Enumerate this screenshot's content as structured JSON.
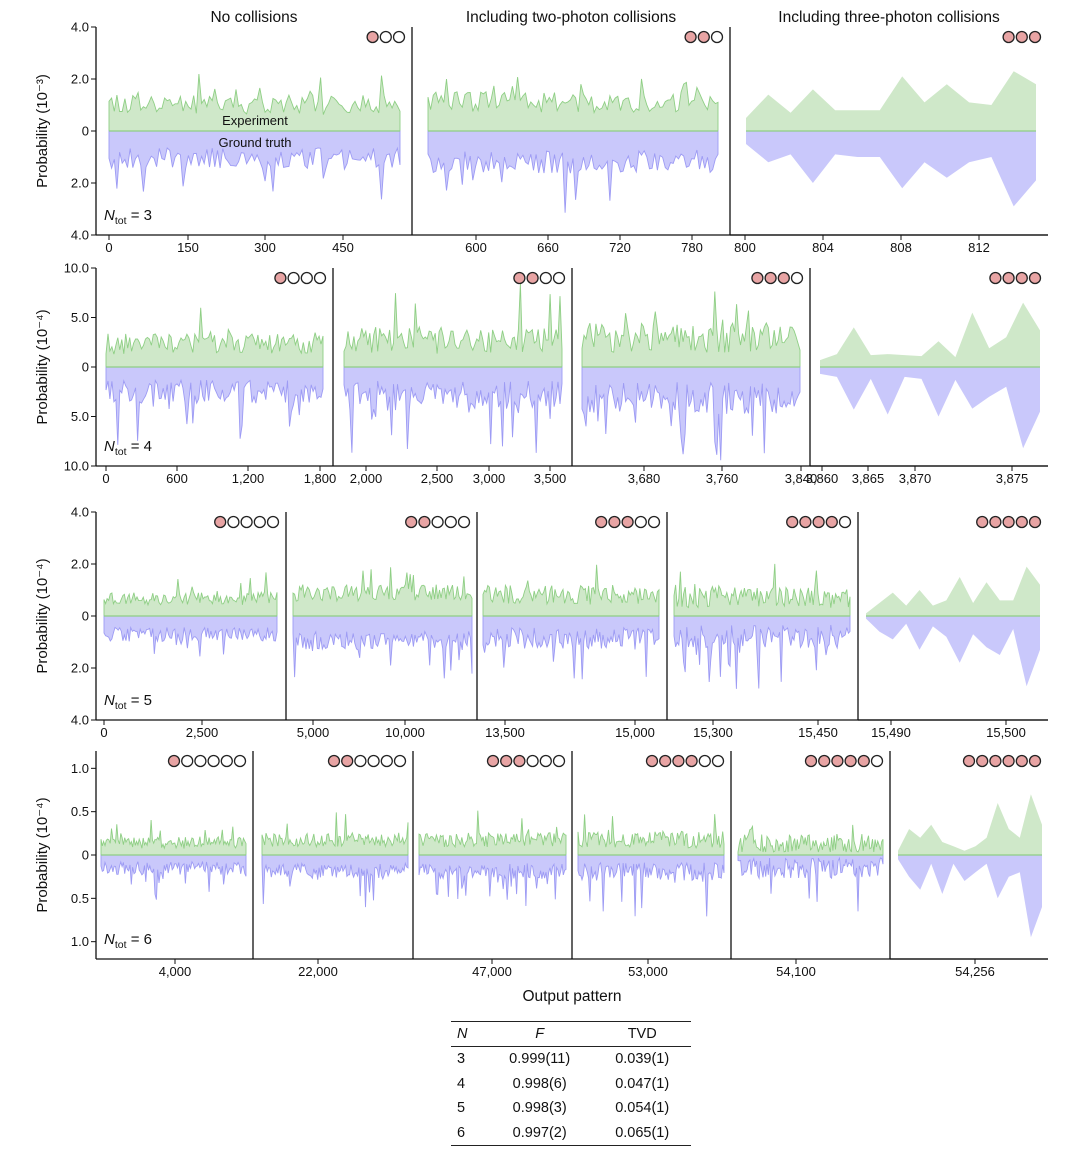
{
  "colors": {
    "experiment": "#8fcf85",
    "experiment_fill": "#cfe8c9",
    "truth": "#9d9bf4",
    "truth_fill": "#c9c8fb",
    "axis": "#111111",
    "photon_filled": "#e8a4a4",
    "photon_empty": "#ffffff"
  },
  "x_axis_label": "Output pattern",
  "table": {
    "headers": [
      "N",
      "F",
      "TVD"
    ],
    "rows": [
      [
        "3",
        "0.999(11)",
        "0.039(1)"
      ],
      [
        "4",
        "0.998(6)",
        "0.047(1)"
      ],
      [
        "5",
        "0.998(3)",
        "0.054(1)"
      ],
      [
        "6",
        "0.997(2)",
        "0.065(1)"
      ]
    ]
  },
  "chart_data": [
    {
      "type": "area",
      "title_row": "N_tot = 3",
      "n_tot": "3",
      "ylabel": "Probability (10⁻³)",
      "y_ticks": [
        "4.0",
        "2.0",
        "0",
        "2.0",
        "4.0"
      ],
      "ylim": [
        -4,
        4
      ],
      "series": [
        {
          "name": "Experiment",
          "direction": "up"
        },
        {
          "name": "Ground truth",
          "direction": "down"
        }
      ],
      "inline_labels": [
        "Experiment",
        "Ground truth"
      ],
      "panels": [
        {
          "title": "No collisions",
          "photons": {
            "filled": 1,
            "total": 3
          },
          "x_ticks": [
            "0",
            "150",
            "300",
            "450"
          ],
          "x_range": [
            0,
            560
          ],
          "dense": true,
          "mean": 0.9,
          "amp": 1.4
        },
        {
          "title": "Including two-photon collisions",
          "photons": {
            "filled": 2,
            "total": 3
          },
          "x_ticks": [
            "600",
            "660",
            "720",
            "780"
          ],
          "x_range": [
            560,
            799
          ],
          "dense": true,
          "mean": 1.0,
          "amp": 1.5
        },
        {
          "title": "Including three-photon collisions",
          "photons": {
            "filled": 3,
            "total": 3
          },
          "x_ticks": [
            "800",
            "804",
            "808",
            "812"
          ],
          "x_range": [
            799.5,
            815
          ],
          "dense": false,
          "up": [
            0.5,
            1.4,
            0.7,
            1.6,
            0.8,
            0.8,
            0.8,
            2.1,
            1.1,
            1.8,
            1.1,
            1.0,
            2.3,
            1.8
          ],
          "down": [
            0.5,
            1.2,
            0.9,
            2.0,
            0.9,
            1.0,
            1.0,
            2.2,
            1.2,
            1.8,
            1.2,
            1.0,
            2.9,
            1.9
          ]
        }
      ]
    },
    {
      "type": "area",
      "n_tot": "4",
      "ylabel": "Probability (10⁻⁴)",
      "y_ticks": [
        "10.0",
        "5.0",
        "0",
        "5.0",
        "10.0"
      ],
      "ylim": [
        -10,
        10
      ],
      "series": [
        {
          "name": "Experiment",
          "direction": "up"
        },
        {
          "name": "Ground truth",
          "direction": "down"
        }
      ],
      "panels": [
        {
          "photons": {
            "filled": 1,
            "total": 4
          },
          "x_ticks": [
            "0",
            "600",
            "1,200",
            "1,800"
          ],
          "x_range": [
            0,
            1820
          ],
          "dense": true,
          "mean": 2.0,
          "amp": 4.0
        },
        {
          "photons": {
            "filled": 2,
            "total": 4
          },
          "x_ticks": [
            "2,000",
            "2,500",
            "3,000",
            "3,500"
          ],
          "x_range": [
            1820,
            3600
          ],
          "dense": true,
          "mean": 2.3,
          "amp": 5.0
        },
        {
          "photons": {
            "filled": 3,
            "total": 4
          },
          "x_ticks": [
            "3,680",
            "3,760",
            "3,840"
          ],
          "x_range": [
            3600,
            3855
          ],
          "dense": true,
          "mean": 2.5,
          "amp": 5.5
        },
        {
          "photons": {
            "filled": 4,
            "total": 4
          },
          "x_ticks": [
            "3,860",
            "3,865",
            "3,870",
            "3,875"
          ],
          "x_range": [
            3859.7,
            3876.1
          ],
          "dense": false,
          "up": [
            0.7,
            1.3,
            4.0,
            1.2,
            1.3,
            1.2,
            1.1,
            2.6,
            1.0,
            5.5,
            1.9,
            3.0,
            6.5,
            3.7
          ],
          "down": [
            0.7,
            1.0,
            4.3,
            1.2,
            4.8,
            1.0,
            1.2,
            5.0,
            1.3,
            4.2,
            3.0,
            2.0,
            8.2,
            4.5
          ]
        }
      ]
    },
    {
      "type": "area",
      "n_tot": "5",
      "ylabel": "Probability (10⁻⁴)",
      "y_ticks": [
        "4.0",
        "2.0",
        "0",
        "2.0",
        "4.0"
      ],
      "ylim": [
        -4,
        4
      ],
      "series": [
        {
          "name": "Experiment",
          "direction": "up"
        },
        {
          "name": "Ground truth",
          "direction": "down"
        }
      ],
      "panels": [
        {
          "photons": {
            "filled": 1,
            "total": 5
          },
          "x_ticks": [
            "0",
            "2,500"
          ],
          "x_range": [
            0,
            4250
          ],
          "dense": true,
          "mean": 0.6,
          "amp": 0.9
        },
        {
          "photons": {
            "filled": 2,
            "total": 5
          },
          "x_ticks": [
            "5,000",
            "10,000"
          ],
          "x_range": [
            4250,
            12750
          ],
          "dense": true,
          "mean": 0.8,
          "amp": 1.2
        },
        {
          "photons": {
            "filled": 3,
            "total": 5
          },
          "x_ticks": [
            "13,500",
            "15,000"
          ],
          "x_range": [
            12750,
            15540
          ],
          "dense": true,
          "mean": 0.7,
          "amp": 1.4
        },
        {
          "photons": {
            "filled": 4,
            "total": 5
          },
          "x_ticks": [
            "15,300",
            "15,450"
          ],
          "x_range": [
            15190,
            15488
          ],
          "dense": true,
          "mean": 0.6,
          "amp": 1.5
        },
        {
          "photons": {
            "filled": 5,
            "total": 5
          },
          "x_ticks": [
            "15,490",
            "15,500"
          ],
          "x_range": [
            15488.6,
            15508.3
          ],
          "dense": false,
          "up": [
            0.1,
            0.5,
            0.9,
            0.4,
            1.0,
            0.4,
            0.6,
            1.5,
            0.5,
            1.3,
            0.6,
            0.6,
            1.9,
            1.2
          ],
          "down": [
            0.1,
            0.6,
            0.9,
            0.3,
            1.3,
            0.4,
            0.8,
            1.8,
            0.7,
            1.2,
            1.5,
            0.5,
            2.7,
            1.3
          ]
        }
      ]
    },
    {
      "type": "area",
      "n_tot": "6",
      "ylabel": "Probability (10⁻⁴)",
      "y_ticks": [
        "1.0",
        "0.5",
        "0",
        "0.5",
        "1.0"
      ],
      "ylim": [
        -1.2,
        1.2
      ],
      "series": [
        {
          "name": "Experiment",
          "direction": "up"
        },
        {
          "name": "Ground truth",
          "direction": "down"
        }
      ],
      "panels": [
        {
          "photons": {
            "filled": 1,
            "total": 6
          },
          "x_ticks": [
            "4,000"
          ],
          "x_range": [
            0,
            9000
          ],
          "dense": true,
          "mean": 0.12,
          "amp": 0.25
        },
        {
          "photons": {
            "filled": 2,
            "total": 6
          },
          "x_ticks": [
            "22,000"
          ],
          "x_range": [
            9000,
            36000
          ],
          "dense": true,
          "mean": 0.15,
          "amp": 0.3
        },
        {
          "photons": {
            "filled": 3,
            "total": 6
          },
          "x_ticks": [
            "47,000"
          ],
          "x_range": [
            36000,
            58000
          ],
          "dense": true,
          "mean": 0.15,
          "amp": 0.3
        },
        {
          "photons": {
            "filled": 4,
            "total": 6
          },
          "x_ticks": [
            "53,000"
          ],
          "x_range": [
            48000,
            58000
          ],
          "dense": true,
          "mean": 0.15,
          "amp": 0.35
        },
        {
          "photons": {
            "filled": 5,
            "total": 6
          },
          "x_ticks": [
            "54,100"
          ],
          "x_range": [
            53600,
            54600
          ],
          "dense": true,
          "mean": 0.1,
          "amp": 0.4
        },
        {
          "photons": {
            "filled": 6,
            "total": 6
          },
          "x_ticks": [
            "54,256"
          ],
          "x_range": [
            0,
            13
          ],
          "dense": false,
          "up": [
            0.05,
            0.3,
            0.2,
            0.35,
            0.15,
            0.1,
            0.05,
            0.1,
            0.2,
            0.6,
            0.3,
            0.2,
            0.7,
            0.35
          ],
          "down": [
            0.05,
            0.25,
            0.4,
            0.1,
            0.45,
            0.1,
            0.3,
            0.2,
            0.1,
            0.5,
            0.25,
            0.2,
            0.95,
            0.6
          ]
        }
      ]
    }
  ]
}
